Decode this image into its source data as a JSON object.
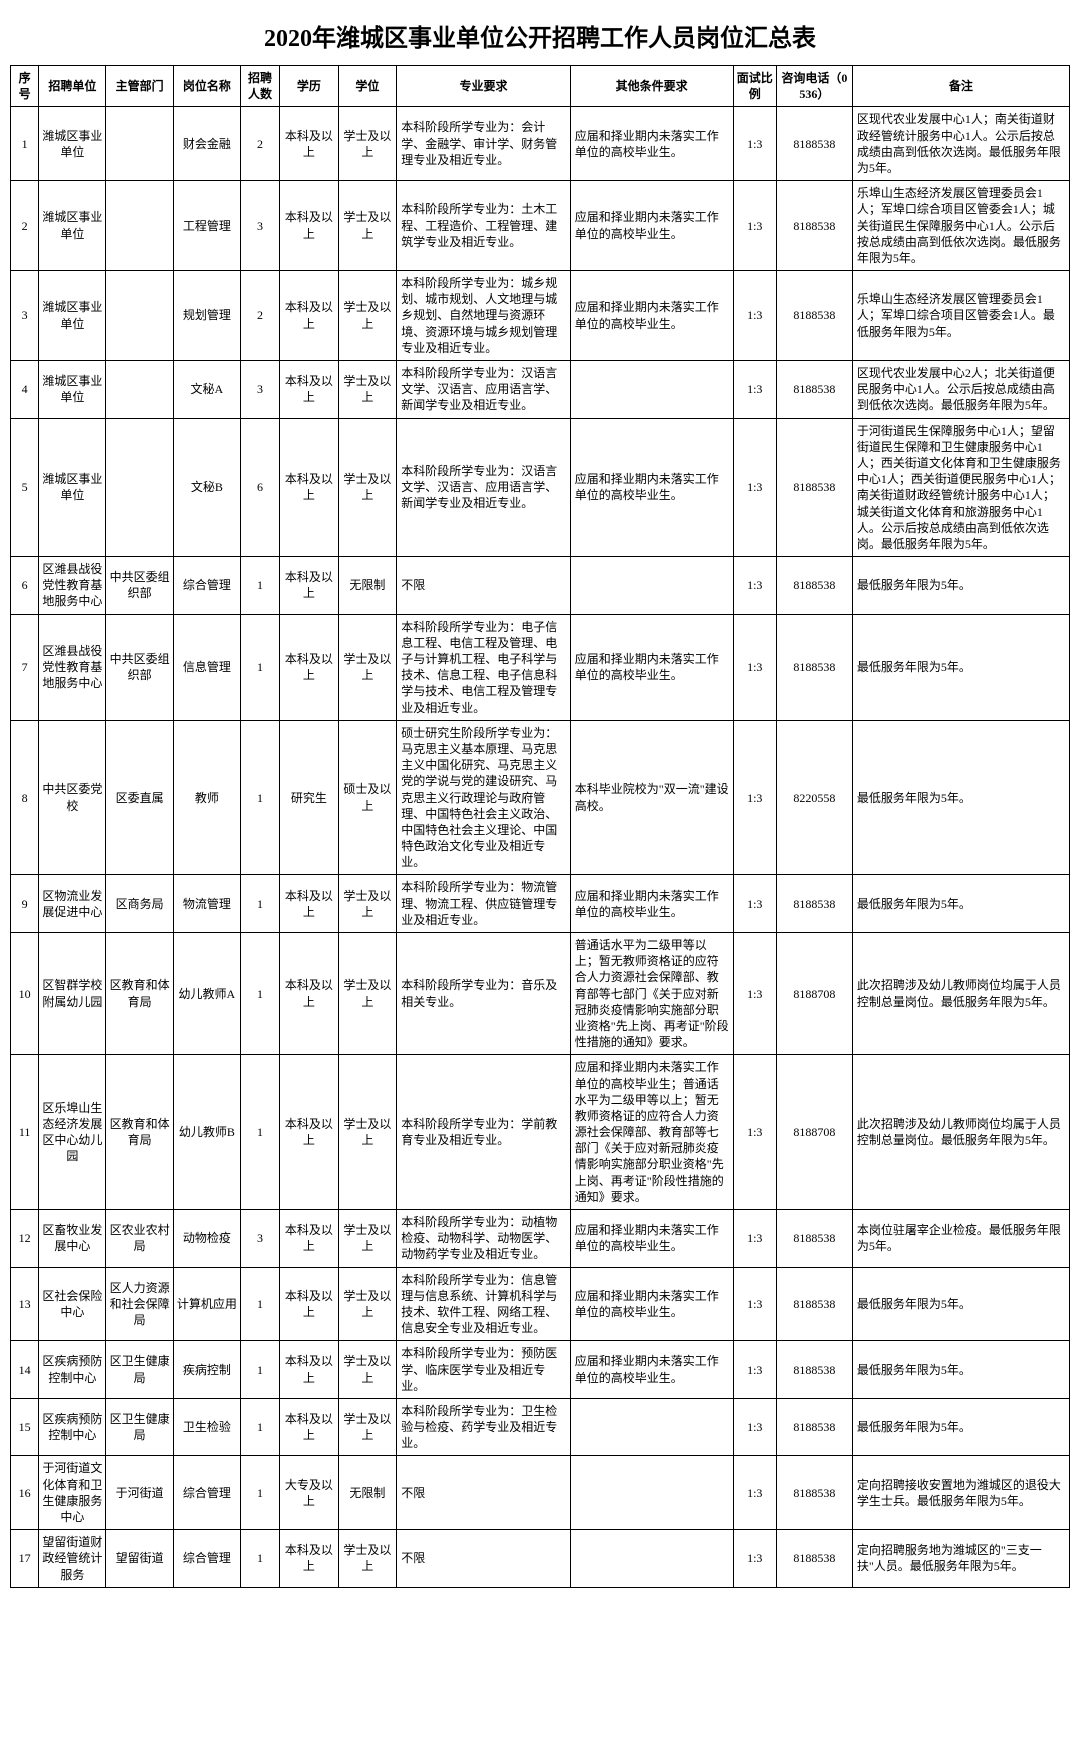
{
  "title": "2020年潍城区事业单位公开招聘工作人员岗位汇总表",
  "headers": [
    "序号",
    "招聘单位",
    "主管部门",
    "岗位名称",
    "招聘人数",
    "学历",
    "学位",
    "专业要求",
    "其他条件要求",
    "面试比例",
    "咨询电话（0536）",
    "备注"
  ],
  "rows": [
    {
      "seq": "1",
      "unit": "潍城区事业单位",
      "dept": "",
      "post": "财会金融",
      "num": "2",
      "edu": "本科及以上",
      "deg": "学士及以上",
      "major": "本科阶段所学专业为：会计学、金融学、审计学、财务管理专业及相近专业。",
      "other": "应届和择业期内未落实工作单位的高校毕业生。",
      "ratio": "1:3",
      "tel": "8188538",
      "note": "区现代农业发展中心1人；南关街道财政经管统计服务中心1人。公示后按总成绩由高到低依次选岗。最低服务年限为5年。"
    },
    {
      "seq": "2",
      "unit": "潍城区事业单位",
      "dept": "",
      "post": "工程管理",
      "num": "3",
      "edu": "本科及以上",
      "deg": "学士及以上",
      "major": "本科阶段所学专业为：土木工程、工程造价、工程管理、建筑学专业及相近专业。",
      "other": "应届和择业期内未落实工作单位的高校毕业生。",
      "ratio": "1:3",
      "tel": "8188538",
      "note": "乐埠山生态经济发展区管理委员会1人；军埠口综合项目区管委会1人；城关街道民生保障服务中心1人。公示后按总成绩由高到低依次选岗。最低服务年限为5年。"
    },
    {
      "seq": "3",
      "unit": "潍城区事业单位",
      "dept": "",
      "post": "规划管理",
      "num": "2",
      "edu": "本科及以上",
      "deg": "学士及以上",
      "major": "本科阶段所学专业为：城乡规划、城市规划、人文地理与城乡规划、自然地理与资源环境、资源环境与城乡规划管理专业及相近专业。",
      "other": "应届和择业期内未落实工作单位的高校毕业生。",
      "ratio": "1:3",
      "tel": "8188538",
      "note": "乐埠山生态经济发展区管理委员会1人；军埠口综合项目区管委会1人。最低服务年限为5年。"
    },
    {
      "seq": "4",
      "unit": "潍城区事业单位",
      "dept": "",
      "post": "文秘A",
      "num": "3",
      "edu": "本科及以上",
      "deg": "学士及以上",
      "major": "本科阶段所学专业为：汉语言文学、汉语言、应用语言学、新闻学专业及相近专业。",
      "other": "",
      "ratio": "1:3",
      "tel": "8188538",
      "note": "区现代农业发展中心2人；北关街道便民服务中心1人。公示后按总成绩由高到低依次选岗。最低服务年限为5年。"
    },
    {
      "seq": "5",
      "unit": "潍城区事业单位",
      "dept": "",
      "post": "文秘B",
      "num": "6",
      "edu": "本科及以上",
      "deg": "学士及以上",
      "major": "本科阶段所学专业为：汉语言文学、汉语言、应用语言学、新闻学专业及相近专业。",
      "other": "应届和择业期内未落实工作单位的高校毕业生。",
      "ratio": "1:3",
      "tel": "8188538",
      "note": "于河街道民生保障服务中心1人；望留街道民生保障和卫生健康服务中心1人；西关街道文化体育和卫生健康服务中心1人；西关街道便民服务中心1人；南关街道财政经管统计服务中心1人；城关街道文化体育和旅游服务中心1人。公示后按总成绩由高到低依次选岗。最低服务年限为5年。"
    },
    {
      "seq": "6",
      "unit": "区潍县战役党性教育基地服务中心",
      "dept": "中共区委组织部",
      "post": "综合管理",
      "num": "1",
      "edu": "本科及以上",
      "deg": "无限制",
      "major": "不限",
      "other": "",
      "ratio": "1:3",
      "tel": "8188538",
      "note": "最低服务年限为5年。"
    },
    {
      "seq": "7",
      "unit": "区潍县战役党性教育基地服务中心",
      "dept": "中共区委组织部",
      "post": "信息管理",
      "num": "1",
      "edu": "本科及以上",
      "deg": "学士及以上",
      "major": "本科阶段所学专业为：电子信息工程、电信工程及管理、电子与计算机工程、电子科学与技术、信息工程、电子信息科学与技术、电信工程及管理专业及相近专业。",
      "other": "应届和择业期内未落实工作单位的高校毕业生。",
      "ratio": "1:3",
      "tel": "8188538",
      "note": "最低服务年限为5年。"
    },
    {
      "seq": "8",
      "unit": "中共区委党校",
      "dept": "区委直属",
      "post": "教师",
      "num": "1",
      "edu": "研究生",
      "deg": "硕士及以上",
      "major": "硕士研究生阶段所学专业为：马克思主义基本原理、马克思主义中国化研究、马克思主义党的学说与党的建设研究、马克思主义行政理论与政府管理、中国特色社会主义政治、中国特色社会主义理论、中国特色政治文化专业及相近专业。",
      "other": "本科毕业院校为\"双一流\"建设高校。",
      "ratio": "1:3",
      "tel": "8220558",
      "note": "最低服务年限为5年。"
    },
    {
      "seq": "9",
      "unit": "区物流业发展促进中心",
      "dept": "区商务局",
      "post": "物流管理",
      "num": "1",
      "edu": "本科及以上",
      "deg": "学士及以上",
      "major": "本科阶段所学专业为：物流管理、物流工程、供应链管理专业及相近专业。",
      "other": "应届和择业期内未落实工作单位的高校毕业生。",
      "ratio": "1:3",
      "tel": "8188538",
      "note": "最低服务年限为5年。"
    },
    {
      "seq": "10",
      "unit": "区智群学校附属幼儿园",
      "dept": "区教育和体育局",
      "post": "幼儿教师A",
      "num": "1",
      "edu": "本科及以上",
      "deg": "学士及以上",
      "major": "本科阶段所学专业为：音乐及相关专业。",
      "other": "普通话水平为二级甲等以上；暂无教师资格证的应符合人力资源社会保障部、教育部等七部门《关于应对新冠肺炎疫情影响实施部分职业资格\"先上岗、再考证\"阶段性措施的通知》要求。",
      "ratio": "1:3",
      "tel": "8188708",
      "note": "此次招聘涉及幼儿教师岗位均属于人员控制总量岗位。最低服务年限为5年。"
    },
    {
      "seq": "11",
      "unit": "区乐埠山生态经济发展区中心幼儿园",
      "dept": "区教育和体育局",
      "post": "幼儿教师B",
      "num": "1",
      "edu": "本科及以上",
      "deg": "学士及以上",
      "major": "本科阶段所学专业为：学前教育专业及相近专业。",
      "other": "应届和择业期内未落实工作单位的高校毕业生；普通话水平为二级甲等以上；暂无教师资格证的应符合人力资源社会保障部、教育部等七部门《关于应对新冠肺炎疫情影响实施部分职业资格\"先上岗、再考证\"阶段性措施的通知》要求。",
      "ratio": "1:3",
      "tel": "8188708",
      "note": "此次招聘涉及幼儿教师岗位均属于人员控制总量岗位。最低服务年限为5年。"
    },
    {
      "seq": "12",
      "unit": "区畜牧业发展中心",
      "dept": "区农业农村局",
      "post": "动物检疫",
      "num": "3",
      "edu": "本科及以上",
      "deg": "学士及以上",
      "major": "本科阶段所学专业为：动植物检疫、动物科学、动物医学、动物药学专业及相近专业。",
      "other": "应届和择业期内未落实工作单位的高校毕业生。",
      "ratio": "1:3",
      "tel": "8188538",
      "note": "本岗位驻屠宰企业检疫。最低服务年限为5年。"
    },
    {
      "seq": "13",
      "unit": "区社会保险中心",
      "dept": "区人力资源和社会保障局",
      "post": "计算机应用",
      "num": "1",
      "edu": "本科及以上",
      "deg": "学士及以上",
      "major": "本科阶段所学专业为：信息管理与信息系统、计算机科学与技术、软件工程、网络工程、信息安全专业及相近专业。",
      "other": "应届和择业期内未落实工作单位的高校毕业生。",
      "ratio": "1:3",
      "tel": "8188538",
      "note": "最低服务年限为5年。"
    },
    {
      "seq": "14",
      "unit": "区疾病预防控制中心",
      "dept": "区卫生健康局",
      "post": "疾病控制",
      "num": "1",
      "edu": "本科及以上",
      "deg": "学士及以上",
      "major": "本科阶段所学专业为：预防医学、临床医学专业及相近专业。",
      "other": "应届和择业期内未落实工作单位的高校毕业生。",
      "ratio": "1:3",
      "tel": "8188538",
      "note": "最低服务年限为5年。"
    },
    {
      "seq": "15",
      "unit": "区疾病预防控制中心",
      "dept": "区卫生健康局",
      "post": "卫生检验",
      "num": "1",
      "edu": "本科及以上",
      "deg": "学士及以上",
      "major": "本科阶段所学专业为：卫生检验与检疫、药学专业及相近专业。",
      "other": "",
      "ratio": "1:3",
      "tel": "8188538",
      "note": "最低服务年限为5年。"
    },
    {
      "seq": "16",
      "unit": "于河街道文化体育和卫生健康服务中心",
      "dept": "于河街道",
      "post": "综合管理",
      "num": "1",
      "edu": "大专及以上",
      "deg": "无限制",
      "major": "不限",
      "other": "",
      "ratio": "1:3",
      "tel": "8188538",
      "note": "定向招聘接收安置地为潍城区的退役大学生士兵。最低服务年限为5年。"
    },
    {
      "seq": "17",
      "unit": "望留街道财政经管统计服务",
      "dept": "望留街道",
      "post": "综合管理",
      "num": "1",
      "edu": "本科及以上",
      "deg": "学士及以上",
      "major": "不限",
      "other": "",
      "ratio": "1:3",
      "tel": "8188538",
      "note": "定向招聘服务地为潍城区的\"三支一扶\"人员。最低服务年限为5年。"
    }
  ]
}
